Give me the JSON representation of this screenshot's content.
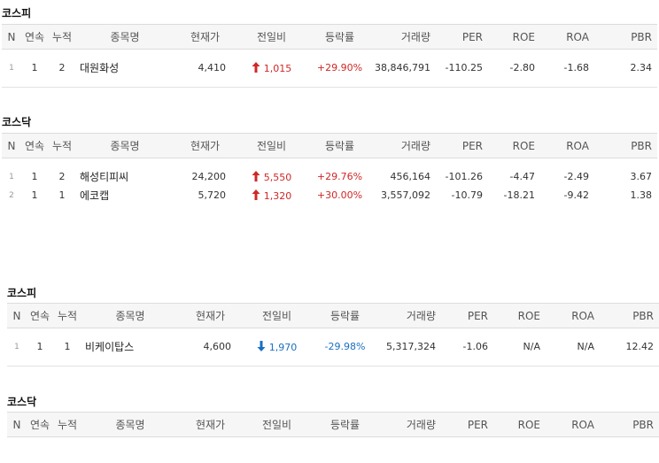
{
  "columns": [
    "N",
    "연속",
    "누적",
    "종목명",
    "현재가",
    "전일비",
    "등락률",
    "거래량",
    "PER",
    "ROE",
    "ROA",
    "PBR"
  ],
  "colors": {
    "up": "#d12727",
    "down": "#1b6fc2"
  },
  "sections": [
    {
      "title": "코스피",
      "rows": [
        {
          "n": "1",
          "streak": "1",
          "cumulative": "2",
          "name": "대원화성",
          "price": "4,410",
          "direction": "up",
          "change": "1,015",
          "rate": "+29.90%",
          "volume": "38,846,791",
          "per": "-110.25",
          "roe": "-2.80",
          "roa": "-1.68",
          "pbr": "2.34"
        }
      ]
    },
    {
      "title": "코스닥",
      "rows": [
        {
          "n": "1",
          "streak": "1",
          "cumulative": "2",
          "name": "해성티피씨",
          "price": "24,200",
          "direction": "up",
          "change": "5,550",
          "rate": "+29.76%",
          "volume": "456,164",
          "per": "-101.26",
          "roe": "-4.47",
          "roa": "-2.49",
          "pbr": "3.67"
        },
        {
          "n": "2",
          "streak": "1",
          "cumulative": "1",
          "name": "에코캡",
          "price": "5,720",
          "direction": "up",
          "change": "1,320",
          "rate": "+30.00%",
          "volume": "3,557,092",
          "per": "-10.79",
          "roe": "-18.21",
          "roa": "-9.42",
          "pbr": "1.38"
        }
      ]
    },
    {
      "title": "코스피",
      "rows": [
        {
          "n": "1",
          "streak": "1",
          "cumulative": "1",
          "name": "비케이탑스",
          "price": "4,600",
          "direction": "down",
          "change": "1,970",
          "rate": "-29.98%",
          "volume": "5,317,324",
          "per": "-1.06",
          "roe": "N/A",
          "roa": "N/A",
          "pbr": "12.42"
        }
      ]
    },
    {
      "title": "코스닥",
      "rows": []
    }
  ]
}
